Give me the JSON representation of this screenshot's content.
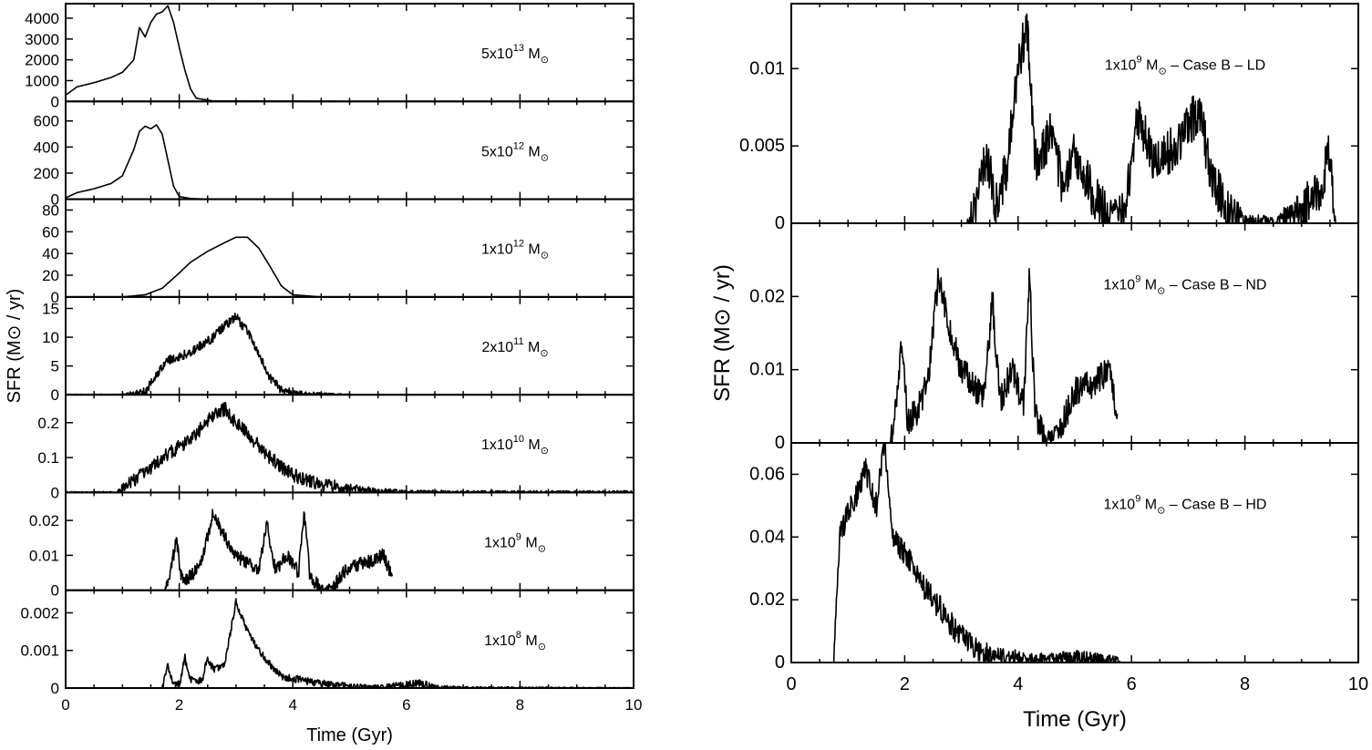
{
  "chart_data": [
    {
      "type": "line",
      "xlabel": "Time (Gyr)",
      "ylabel": "SFR (M⊙ / yr)",
      "xlim": [
        0,
        10
      ],
      "xticks": [
        "0",
        "2",
        "4",
        "6",
        "8",
        "10"
      ],
      "panels": [
        {
          "label": {
            "pre": "5x10",
            "sup": "13",
            "post": " M",
            "sub": "⊙"
          },
          "ylim": [
            0,
            4700
          ],
          "yticks": [
            "0",
            "1000",
            "2000",
            "3000",
            "4000"
          ],
          "ytick_values": [
            0,
            1000,
            2000,
            3000,
            4000
          ],
          "x": [
            0,
            0.2,
            0.5,
            0.8,
            1.0,
            1.2,
            1.3,
            1.4,
            1.5,
            1.6,
            1.7,
            1.8,
            1.9,
            2.0,
            2.1,
            2.2,
            2.3,
            2.6,
            3.0,
            5.0
          ],
          "y": [
            300,
            700,
            900,
            1150,
            1400,
            2000,
            3550,
            3100,
            3800,
            4200,
            4300,
            4600,
            3800,
            2600,
            1500,
            600,
            150,
            20,
            20,
            0
          ]
        },
        {
          "label": {
            "pre": "5x10",
            "sup": "12",
            "post": " M",
            "sub": "⊙"
          },
          "ylim": [
            0,
            750
          ],
          "yticks": [
            "0",
            "200",
            "400",
            "600"
          ],
          "ytick_values": [
            0,
            200,
            400,
            600
          ],
          "x": [
            0,
            0.2,
            0.5,
            0.8,
            1.0,
            1.2,
            1.3,
            1.4,
            1.5,
            1.6,
            1.7,
            1.8,
            1.9,
            2.0,
            2.2,
            2.5,
            3.0
          ],
          "y": [
            10,
            50,
            80,
            120,
            180,
            380,
            520,
            560,
            540,
            570,
            500,
            300,
            100,
            20,
            5,
            0,
            0
          ]
        },
        {
          "label": {
            "pre": "1x10",
            "sup": "12",
            "post": " M",
            "sub": "⊙"
          },
          "ylim": [
            0,
            90
          ],
          "yticks": [
            "0",
            "20",
            "40",
            "60",
            "80"
          ],
          "ytick_values": [
            0,
            20,
            40,
            60,
            80
          ],
          "x": [
            0,
            0.5,
            1.0,
            1.4,
            1.7,
            2.0,
            2.2,
            2.5,
            2.8,
            3.0,
            3.2,
            3.4,
            3.6,
            3.8,
            4.0,
            4.5
          ],
          "y": [
            0,
            0,
            0,
            2,
            8,
            22,
            32,
            42,
            50,
            55,
            55,
            45,
            28,
            10,
            2,
            0
          ]
        },
        {
          "label": {
            "pre": "2x10",
            "sup": "11",
            "post": " M",
            "sub": "⊙"
          },
          "ylim": [
            0,
            17
          ],
          "yticks": [
            "0",
            "5",
            "10",
            "15"
          ],
          "ytick_values": [
            0,
            5,
            10,
            15
          ],
          "x": [
            0,
            1.0,
            1.4,
            1.6,
            1.8,
            2.0,
            2.3,
            2.6,
            2.8,
            3.0,
            3.2,
            3.4,
            3.6,
            3.8,
            4.0,
            4.5,
            5.0
          ],
          "y": [
            0,
            0,
            0.5,
            3.5,
            6,
            6.5,
            8,
            10,
            12,
            13.5,
            11,
            7,
            3,
            0.8,
            0.3,
            0.1,
            0
          ],
          "noise": 0.8
        },
        {
          "label": {
            "pre": "1x10",
            "sup": "10",
            "post": " M",
            "sub": "⊙"
          },
          "ylim": [
            0,
            0.28
          ],
          "yticks": [
            "0",
            "0.1",
            "0.2"
          ],
          "ytick_values": [
            0,
            0.1,
            0.2
          ],
          "x": [
            0,
            0.9,
            1.1,
            1.3,
            1.5,
            1.7,
            2.0,
            2.3,
            2.6,
            2.8,
            3.0,
            3.3,
            3.6,
            4.0,
            4.5,
            5.0,
            5.5,
            6.0,
            7.0,
            10.0
          ],
          "y": [
            0,
            0,
            0.02,
            0.05,
            0.07,
            0.1,
            0.13,
            0.17,
            0.22,
            0.24,
            0.2,
            0.15,
            0.1,
            0.05,
            0.02,
            0.01,
            0.004,
            0.002,
            0.001,
            0.001
          ],
          "noise": 0.02
        },
        {
          "label": {
            "pre": "1x10",
            "sup": "9",
            "post": " M",
            "sub": "⊙"
          },
          "ylim": [
            0,
            0.028
          ],
          "yticks": [
            "0",
            "0.01",
            "0.02"
          ],
          "ytick_values": [
            0,
            0.01,
            0.02
          ],
          "x": [
            1.75,
            1.85,
            1.95,
            2.05,
            2.2,
            2.4,
            2.6,
            2.8,
            3.0,
            3.2,
            3.4,
            3.55,
            3.6,
            3.7,
            3.9,
            4.1,
            4.2,
            4.3,
            4.5,
            4.7,
            5.0,
            5.3,
            5.6,
            5.75
          ],
          "y": [
            0,
            0.006,
            0.014,
            0.003,
            0.004,
            0.008,
            0.023,
            0.015,
            0.01,
            0.008,
            0.006,
            0.02,
            0.012,
            0.006,
            0.01,
            0.005,
            0.023,
            0.004,
            0.0005,
            0.001,
            0.007,
            0.008,
            0.01,
            0.004
          ],
          "noise": 0.002
        },
        {
          "label": {
            "pre": "1x10",
            "sup": "8",
            "post": " M",
            "sub": "⊙"
          },
          "ylim": [
            0,
            0.0026
          ],
          "yticks": [
            "0",
            "0.001",
            "0.002"
          ],
          "ytick_values": [
            0,
            0.001,
            0.002
          ],
          "x": [
            1.7,
            1.8,
            1.9,
            2.0,
            2.1,
            2.2,
            2.4,
            2.5,
            2.6,
            2.8,
            3.0,
            3.2,
            3.5,
            3.8,
            4.2,
            4.6,
            5.0,
            5.5,
            6.0,
            6.2,
            6.5,
            7.0,
            10.0
          ],
          "y": [
            0,
            0.0006,
            0.0001,
            0.0001,
            0.0008,
            0.0002,
            0.0002,
            0.0008,
            0.0005,
            0.0006,
            0.0023,
            0.0015,
            0.0008,
            0.0003,
            0.0002,
            0.0001,
            5e-05,
            3e-05,
            8e-05,
            0.00015,
            3e-05,
            1e-05,
            0
          ],
          "noise": 0.0001
        }
      ]
    },
    {
      "type": "line",
      "xlabel": "Time (Gyr)",
      "ylabel": "SFR (M⊙ / yr)",
      "xlim": [
        0,
        10
      ],
      "xticks": [
        "0",
        "2",
        "4",
        "6",
        "8",
        "10"
      ],
      "panels": [
        {
          "label": {
            "pre": "1x10",
            "sup": "9",
            "post": " M",
            "sub": "⊙",
            "tail": " – Case B – LD"
          },
          "ylim": [
            0,
            0.0142
          ],
          "yticks": [
            "0",
            "0.005",
            "0.01"
          ],
          "ytick_values": [
            0,
            0.005,
            0.01
          ],
          "x": [
            3.1,
            3.3,
            3.45,
            3.6,
            3.8,
            4.0,
            4.15,
            4.3,
            4.6,
            4.8,
            5.0,
            5.3,
            5.6,
            5.9,
            6.1,
            6.4,
            6.8,
            7.2,
            7.4,
            7.7,
            8.0,
            8.5,
            9.0,
            9.3,
            9.5,
            9.6
          ],
          "y": [
            0,
            0.002,
            0.0045,
            0.001,
            0.0035,
            0.01,
            0.013,
            0.004,
            0.006,
            0.002,
            0.0045,
            0.002,
            0.0005,
            0.001,
            0.007,
            0.004,
            0.005,
            0.0075,
            0.003,
            0.001,
            0.0002,
            0.0001,
            0.0008,
            0.002,
            0.0045,
            0
          ],
          "noise": 0.0015
        },
        {
          "label": {
            "pre": "1x10",
            "sup": "9",
            "post": " M",
            "sub": "⊙",
            "tail": " – Case B – ND"
          },
          "ylim": [
            0,
            0.03
          ],
          "yticks": [
            "0",
            "0.01",
            "0.02"
          ],
          "ytick_values": [
            0,
            0.01,
            0.02
          ],
          "x": [
            1.75,
            1.85,
            1.95,
            2.05,
            2.2,
            2.4,
            2.6,
            2.8,
            3.0,
            3.2,
            3.4,
            3.55,
            3.6,
            3.7,
            3.9,
            4.1,
            4.2,
            4.3,
            4.5,
            4.7,
            5.0,
            5.3,
            5.6,
            5.75
          ],
          "y": [
            0,
            0.006,
            0.014,
            0.003,
            0.004,
            0.008,
            0.023,
            0.015,
            0.01,
            0.008,
            0.006,
            0.02,
            0.012,
            0.006,
            0.01,
            0.005,
            0.023,
            0.004,
            0.0005,
            0.001,
            0.007,
            0.008,
            0.01,
            0.004
          ],
          "noise": 0.002
        },
        {
          "label": {
            "pre": "1x10",
            "sup": "9",
            "post": " M",
            "sub": "⊙",
            "tail": " – Case B – HD"
          },
          "ylim": [
            0,
            0.07
          ],
          "yticks": [
            "0",
            "0.02",
            "0.04",
            "0.06"
          ],
          "ytick_values": [
            0,
            0.02,
            0.04,
            0.06
          ],
          "x": [
            0.75,
            0.85,
            1.0,
            1.2,
            1.3,
            1.5,
            1.65,
            1.8,
            2.0,
            2.3,
            2.6,
            2.9,
            3.2,
            3.5,
            4.0,
            4.5,
            5.0,
            5.5,
            5.8
          ],
          "y": [
            0,
            0.04,
            0.048,
            0.055,
            0.062,
            0.05,
            0.07,
            0.04,
            0.035,
            0.025,
            0.018,
            0.01,
            0.005,
            0.002,
            0.0015,
            0.001,
            0.0015,
            0.001,
            0.0005
          ],
          "noise": 0.004
        }
      ]
    }
  ]
}
